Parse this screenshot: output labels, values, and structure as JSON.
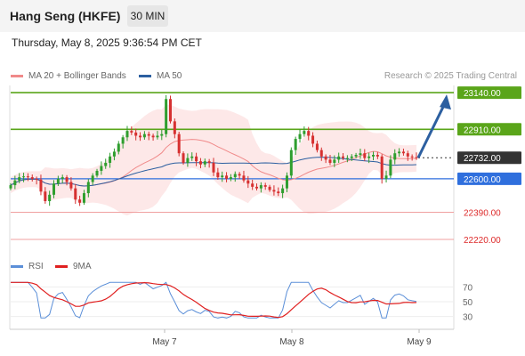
{
  "header": {
    "title": "Hang Seng (HKFE)",
    "timeframe": "30 MIN",
    "datetime": "Thursday, May 8, 2025 9:36:54 PM CET"
  },
  "legend": [
    {
      "label": "MA 20 + Bollinger Bands",
      "color": "#f08a8a"
    },
    {
      "label": "MA 50",
      "color": "#2c5fa0"
    }
  ],
  "credit": "Research © 2025 Trading Central",
  "colors": {
    "resistance": "#5aa51a",
    "support": "#2f6fdd",
    "sub_support": "#f0a0a0",
    "current": "#333333",
    "up_candle": "#2e9e2e",
    "down_candle": "#d63030",
    "bollinger_fill": "#fde4e4",
    "arrow": "#2c5fa0",
    "rsi": "#5b8fd8",
    "rsi_ma": "#e02020"
  },
  "chart_data": [
    {
      "type": "candlestick",
      "title": "Hang Seng (HKFE) 30 MIN",
      "x_tick_labels": [
        "May 7",
        "May 8",
        "May 9"
      ],
      "ylim": [
        22170,
        23185
      ],
      "levels": [
        {
          "value": 23140.0,
          "label": "23140.00",
          "kind": "resistance"
        },
        {
          "value": 22910.0,
          "label": "22910.00",
          "kind": "resistance"
        },
        {
          "value": 22732.0,
          "label": "22732.00",
          "kind": "current"
        },
        {
          "value": 22600.0,
          "label": "22600.00",
          "kind": "support"
        },
        {
          "value": 22390.0,
          "label": "22390.00",
          "kind": "support"
        },
        {
          "value": 22220.0,
          "label": "22220.00",
          "kind": "support"
        }
      ],
      "target_arrow": {
        "from": 22732,
        "to": 23140
      },
      "closes": [
        22560,
        22590,
        22610,
        22615,
        22610,
        22600,
        22595,
        22520,
        22460,
        22500,
        22570,
        22600,
        22610,
        22580,
        22540,
        22470,
        22450,
        22510,
        22580,
        22620,
        22650,
        22680,
        22700,
        22740,
        22770,
        22820,
        22860,
        22900,
        22890,
        22870,
        22860,
        22880,
        22870,
        22860,
        22870,
        22880,
        23100,
        22960,
        22880,
        22760,
        22700,
        22730,
        22740,
        22710,
        22690,
        22710,
        22700,
        22640,
        22610,
        22620,
        22600,
        22610,
        22630,
        22620,
        22590,
        22570,
        22550,
        22540,
        22560,
        22550,
        22530,
        22520,
        22510,
        22540,
        22620,
        22780,
        22850,
        22880,
        22900,
        22870,
        22820,
        22780,
        22740,
        22720,
        22700,
        22720,
        22740,
        22730,
        22730,
        22740,
        22750,
        22760,
        22730,
        22740,
        22750,
        22740,
        22600,
        22620,
        22720,
        22760,
        22770,
        22760,
        22740,
        22735,
        22732
      ]
    },
    {
      "type": "line",
      "title": "RSI",
      "series": [
        {
          "name": "RSI"
        },
        {
          "name": "9MA"
        }
      ],
      "y_tick_labels": [
        "70",
        "50",
        "30"
      ],
      "ylim": [
        20,
        80
      ]
    }
  ]
}
